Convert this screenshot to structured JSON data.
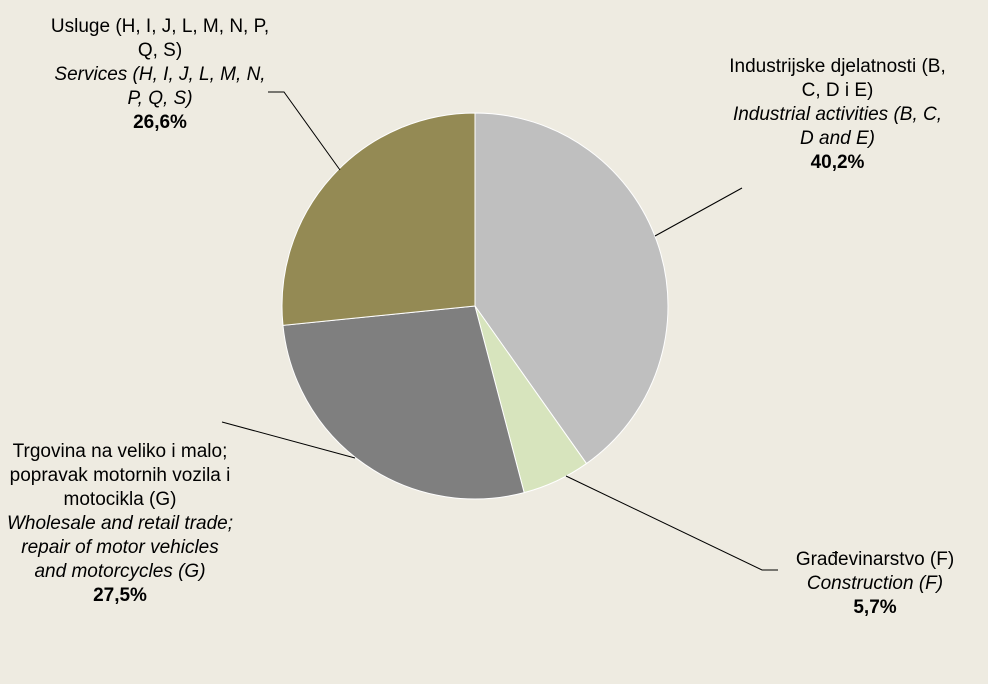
{
  "chart_data": {
    "type": "pie",
    "categories": [
      "Industrijske djelatnosti (B, C, D i E)",
      "Građevinarstvo (F)",
      "Trgovina na veliko i malo; popravak motornih vozila i motocikla  (G)",
      "Usluge (H, I, J, L, M, N, P, Q, S)"
    ],
    "categories_en": [
      "Industrial activities (B, C, D and E)",
      "Construction (F)",
      "Wholesale and retail trade; repair of motor vehicles and motorcycles  (G)",
      "Services (H, I, J, L, M, N, P, Q, S)"
    ],
    "values": [
      40.2,
      5.7,
      27.5,
      26.6
    ],
    "value_labels": [
      "40,2%",
      "5,7%",
      "27,5%",
      "26,6%"
    ],
    "colors": [
      "#bfbfbf",
      "#d7e4bd",
      "#7f7f7f",
      "#948a54"
    ]
  }
}
